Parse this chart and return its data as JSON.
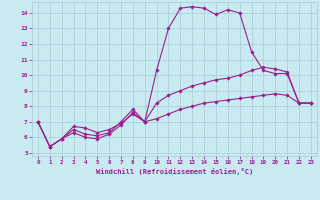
{
  "xlabel": "Windchill (Refroidissement éolien,°C)",
  "bg_color": "#c8eaf0",
  "line_color": "#9b1e8f",
  "grid_color": "#a8ccd8",
  "xlim": [
    -0.5,
    23.5
  ],
  "ylim": [
    4.8,
    14.7
  ],
  "yticks": [
    5,
    6,
    7,
    8,
    9,
    10,
    11,
    12,
    13,
    14
  ],
  "xticks": [
    0,
    1,
    2,
    3,
    4,
    5,
    6,
    7,
    8,
    9,
    10,
    11,
    12,
    13,
    14,
    15,
    16,
    17,
    18,
    19,
    20,
    21,
    22,
    23
  ],
  "curve1_x": [
    0,
    1,
    2,
    3,
    4,
    5,
    6,
    7,
    8,
    9,
    10,
    11,
    12,
    13,
    14,
    15,
    16,
    17,
    18,
    19,
    20,
    21,
    22,
    23
  ],
  "curve1_y": [
    7.0,
    5.4,
    5.9,
    6.7,
    6.6,
    6.3,
    6.5,
    6.9,
    7.5,
    7.0,
    10.3,
    13.0,
    14.3,
    14.4,
    14.3,
    13.9,
    14.2,
    14.0,
    11.5,
    10.3,
    10.1,
    10.1,
    8.2,
    8.2
  ],
  "curve2_x": [
    0,
    1,
    2,
    3,
    4,
    5,
    6,
    7,
    8,
    9,
    10,
    11,
    12,
    13,
    14,
    15,
    16,
    17,
    18,
    19,
    20,
    21,
    22,
    23
  ],
  "curve2_y": [
    7.0,
    5.4,
    5.9,
    6.5,
    6.2,
    6.1,
    6.3,
    7.0,
    7.8,
    7.0,
    8.2,
    8.7,
    9.0,
    9.3,
    9.5,
    9.7,
    9.8,
    10.0,
    10.3,
    10.5,
    10.4,
    10.2,
    8.2,
    8.2
  ],
  "curve3_x": [
    0,
    1,
    2,
    3,
    4,
    5,
    6,
    7,
    8,
    9,
    10,
    11,
    12,
    13,
    14,
    15,
    16,
    17,
    18,
    19,
    20,
    21,
    22,
    23
  ],
  "curve3_y": [
    7.0,
    5.4,
    5.9,
    6.3,
    6.0,
    5.9,
    6.2,
    6.8,
    7.6,
    7.0,
    7.2,
    7.5,
    7.8,
    8.0,
    8.2,
    8.3,
    8.4,
    8.5,
    8.6,
    8.7,
    8.8,
    8.7,
    8.2,
    8.2
  ]
}
